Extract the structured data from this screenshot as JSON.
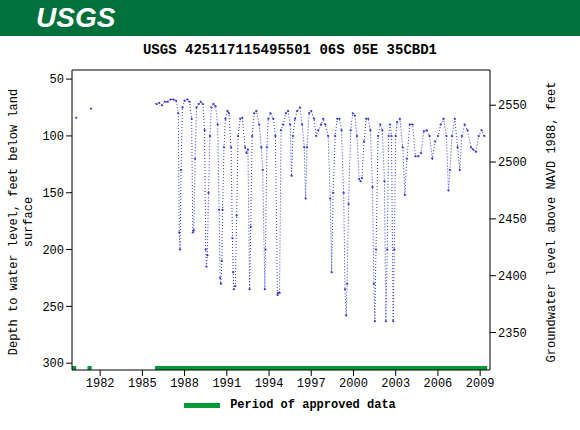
{
  "header": "USGS",
  "chart_data": {
    "type": "line",
    "title": "USGS 425117115495501 06S 05E 35CBD1",
    "y_label": "Depth to water level, feet below land surface",
    "y2_label": "Groundwater level above NAVD 1988, feet",
    "x": [
      1980.3,
      1980.8,
      1981.35,
      1983.5,
      1986.0,
      1986.2,
      1986.4,
      1986.6,
      1986.8,
      1987.0,
      1987.2,
      1987.4,
      1987.55,
      1987.62,
      1987.68,
      1987.75,
      1987.85,
      1988.0,
      1988.2,
      1988.35,
      1988.5,
      1988.58,
      1988.65,
      1988.75,
      1988.85,
      1989.0,
      1989.15,
      1989.3,
      1989.42,
      1989.5,
      1989.55,
      1989.62,
      1989.7,
      1989.8,
      1989.9,
      1990.05,
      1990.2,
      1990.35,
      1990.45,
      1990.52,
      1990.58,
      1990.65,
      1990.7,
      1990.8,
      1990.9,
      1991.05,
      1991.15,
      1991.3,
      1991.4,
      1991.45,
      1991.5,
      1991.6,
      1991.7,
      1991.8,
      1991.95,
      1992.1,
      1992.3,
      1992.4,
      1992.5,
      1992.62,
      1992.7,
      1992.8,
      1992.95,
      1993.1,
      1993.3,
      1993.45,
      1993.55,
      1993.7,
      1993.75,
      1993.85,
      1993.95,
      1994.1,
      1994.3,
      1994.45,
      1994.6,
      1994.65,
      1994.75,
      1994.85,
      1995.0,
      1995.2,
      1995.35,
      1995.5,
      1995.6,
      1995.7,
      1995.85,
      1996.0,
      1996.2,
      1996.35,
      1996.5,
      1996.6,
      1996.7,
      1996.85,
      1997.0,
      1997.2,
      1997.35,
      1997.5,
      1997.7,
      1997.85,
      1998.0,
      1998.2,
      1998.35,
      1998.45,
      1998.55,
      1998.7,
      1998.85,
      1999.0,
      1999.15,
      1999.3,
      1999.4,
      1999.48,
      1999.55,
      1999.65,
      1999.8,
      1999.95,
      2000.1,
      2000.25,
      2000.4,
      2000.5,
      2000.6,
      2000.75,
      2000.9,
      2001.05,
      2001.2,
      2001.35,
      2001.45,
      2001.52,
      2001.6,
      2001.75,
      2001.9,
      2002.05,
      2002.2,
      2002.3,
      2002.4,
      2002.5,
      2002.6,
      2002.7,
      2002.82,
      2002.9,
      2003.0,
      2003.1,
      2003.3,
      2003.5,
      2003.65,
      2003.8,
      2004.0,
      2004.2,
      2004.4,
      2004.6,
      2004.8,
      2005.0,
      2005.2,
      2005.4,
      2005.6,
      2005.8,
      2006.0,
      2006.2,
      2006.4,
      2006.6,
      2006.75,
      2006.85,
      2007.0,
      2007.2,
      2007.4,
      2007.55,
      2007.7,
      2007.9,
      2008.1,
      2008.35,
      2008.5,
      2008.7,
      2008.9,
      2009.1,
      2009.3
    ],
    "values": [
      84,
      null,
      76,
      null,
      72,
      71,
      73,
      70,
      70,
      68,
      68,
      69,
      80,
      185,
      200,
      130,
      75,
      69,
      68,
      70,
      85,
      185,
      183,
      120,
      75,
      72,
      70,
      72,
      95,
      200,
      215,
      205,
      150,
      100,
      75,
      72,
      74,
      90,
      165,
      225,
      230,
      210,
      165,
      110,
      85,
      78,
      80,
      110,
      190,
      220,
      235,
      232,
      170,
      100,
      85,
      84,
      110,
      115,
      112,
      235,
      180,
      100,
      80,
      78,
      90,
      110,
      130,
      235,
      200,
      110,
      85,
      80,
      85,
      100,
      240,
      238,
      238,
      95,
      90,
      80,
      78,
      90,
      135,
      100,
      85,
      78,
      75,
      90,
      110,
      155,
      110,
      80,
      78,
      85,
      100,
      95,
      90,
      85,
      90,
      100,
      155,
      220,
      150,
      100,
      85,
      85,
      95,
      150,
      235,
      258,
      230,
      160,
      95,
      80,
      82,
      100,
      138,
      140,
      137,
      105,
      85,
      85,
      95,
      145,
      230,
      263,
      200,
      100,
      90,
      95,
      140,
      263,
      200,
      100,
      90,
      100,
      263,
      200,
      100,
      88,
      85,
      110,
      152,
      120,
      90,
      90,
      118,
      118,
      115,
      96,
      95,
      100,
      120,
      105,
      100,
      90,
      85,
      100,
      148,
      130,
      100,
      85,
      110,
      130,
      100,
      90,
      95,
      110,
      112,
      114,
      100,
      95,
      100
    ],
    "color": "#3333cc",
    "marker": "circle",
    "line_style": "dotted",
    "approved": {
      "name": "Period of approved data",
      "color": "#009933",
      "ranges": [
        [
          1980.0,
          1980.3
        ],
        [
          1981.1,
          1981.4
        ],
        [
          1985.9,
          2009.5
        ]
      ]
    },
    "xlim": [
      1980,
      2009.7
    ],
    "xticks": [
      1982,
      1985,
      1988,
      1991,
      1994,
      1997,
      2000,
      2003,
      2006,
      2009
    ],
    "ylim": [
      306,
      42
    ],
    "yticks": [
      50,
      100,
      150,
      200,
      250,
      300
    ],
    "y2lim": [
      2317,
      2581
    ],
    "y2ticks": [
      2350,
      2400,
      2450,
      2500,
      2550
    ],
    "legend": "bottom",
    "grid": false
  }
}
